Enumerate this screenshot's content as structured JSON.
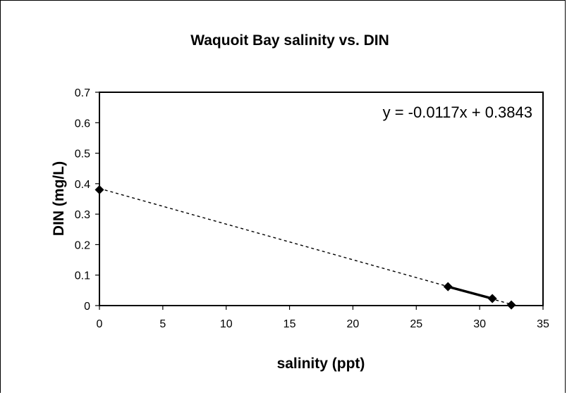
{
  "chart_data": {
    "type": "scatter",
    "title": "Waquoit Bay salinity vs. DIN",
    "xlabel": "salinity (ppt)",
    "ylabel": "DIN (mg/L)",
    "xlim": [
      0,
      35
    ],
    "ylim": [
      0,
      0.7
    ],
    "xticks": [
      "0",
      "5",
      "10",
      "15",
      "20",
      "25",
      "30",
      "35"
    ],
    "yticks": [
      "0",
      "0.1",
      "0.2",
      "0.3",
      "0.4",
      "0.5",
      "0.6",
      "0.7"
    ],
    "grid": false,
    "legend": "none",
    "series": [
      {
        "points": [
          {
            "x": 0,
            "y": 0.38
          },
          {
            "x": 27.5,
            "y": 0.062
          },
          {
            "x": 31,
            "y": 0.023
          },
          {
            "x": 32.5,
            "y": 0.002
          }
        ],
        "segment_line": {
          "from": 1,
          "to": 2
        },
        "color": "#000000",
        "marker": "diamond"
      }
    ],
    "trendline": {
      "type": "linear",
      "slope": -0.0117,
      "intercept": 0.3843,
      "style": "dashed",
      "x_range": [
        0,
        32.5
      ],
      "equation": "y = -0.0117x + 0.3843"
    }
  }
}
